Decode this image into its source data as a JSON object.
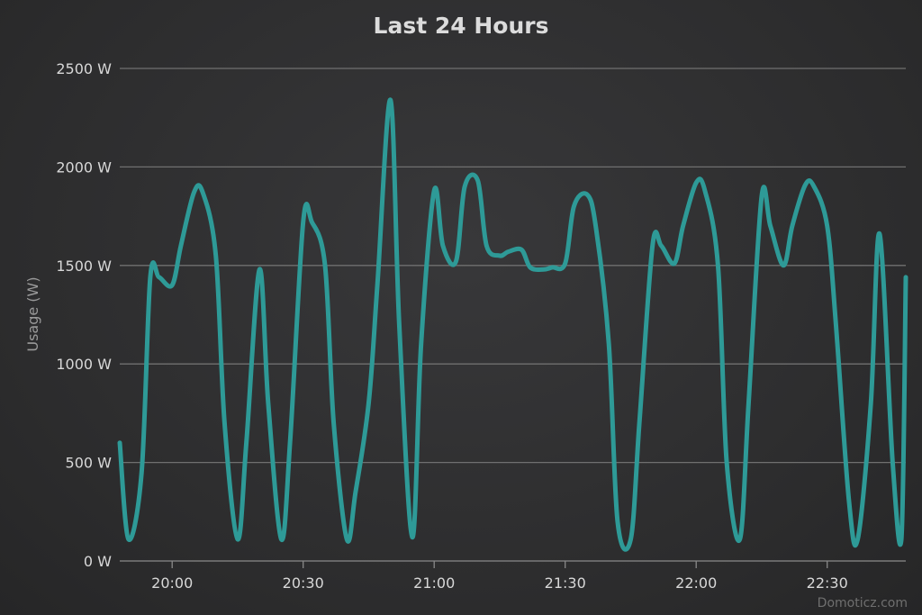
{
  "chart_data": {
    "type": "line",
    "title": "Last 24 Hours",
    "xlabel": "",
    "ylabel": "Usage (W)",
    "ylim": [
      0,
      2500
    ],
    "xlim": [
      "19:48",
      "22:48"
    ],
    "y_ticks": [
      0,
      500,
      1000,
      1500,
      2000,
      2500
    ],
    "y_tick_labels": [
      "0 W",
      "500 W",
      "1000 W",
      "1500 W",
      "2000 W",
      "2500 W"
    ],
    "x_ticks": [
      "20:00",
      "20:30",
      "21:00",
      "21:30",
      "22:00",
      "22:30"
    ],
    "grid": "horizontal",
    "line_color": "#2e9a97",
    "series": [
      {
        "x": [
          "19:48",
          "19:50",
          "19:53",
          "19:55",
          "19:57",
          "20:00",
          "20:02",
          "20:05",
          "20:07",
          "20:10",
          "20:12",
          "20:15",
          "20:17",
          "20:20",
          "20:22",
          "20:25",
          "20:27",
          "20:30",
          "20:32",
          "20:35",
          "20:37",
          "20:40",
          "20:42",
          "20:45",
          "20:47",
          "20:50",
          "20:52",
          "20:55",
          "20:57",
          "21:00",
          "21:02",
          "21:05",
          "21:07",
          "21:10",
          "21:12",
          "21:15",
          "21:17",
          "21:20",
          "21:22",
          "21:25",
          "21:27",
          "21:30",
          "21:32",
          "21:35",
          "21:37",
          "21:40",
          "21:42",
          "21:45",
          "21:47",
          "21:50",
          "21:52",
          "21:55",
          "21:57",
          "22:00",
          "22:02",
          "22:05",
          "22:07",
          "22:10",
          "22:12",
          "22:15",
          "22:17",
          "22:20",
          "22:22",
          "22:25",
          "22:27",
          "22:30",
          "22:32",
          "22:35",
          "22:37",
          "22:40",
          "22:42",
          "22:45",
          "22:47",
          "22:48"
        ],
        "values": [
          600,
          110,
          450,
          1440,
          1440,
          1400,
          1600,
          1870,
          1870,
          1550,
          700,
          110,
          600,
          1480,
          800,
          110,
          600,
          1720,
          1720,
          1500,
          700,
          110,
          350,
          800,
          1400,
          2340,
          1200,
          120,
          1100,
          1880,
          1600,
          1520,
          1900,
          1930,
          1600,
          1550,
          1570,
          1580,
          1490,
          1480,
          1490,
          1510,
          1800,
          1860,
          1700,
          1100,
          200,
          110,
          700,
          1600,
          1600,
          1510,
          1700,
          1920,
          1880,
          1500,
          500,
          110,
          800,
          1850,
          1700,
          1500,
          1700,
          1910,
          1900,
          1700,
          1200,
          300,
          110,
          800,
          1660,
          500,
          110,
          1440
        ]
      }
    ],
    "credit": "Domoticz.com"
  }
}
